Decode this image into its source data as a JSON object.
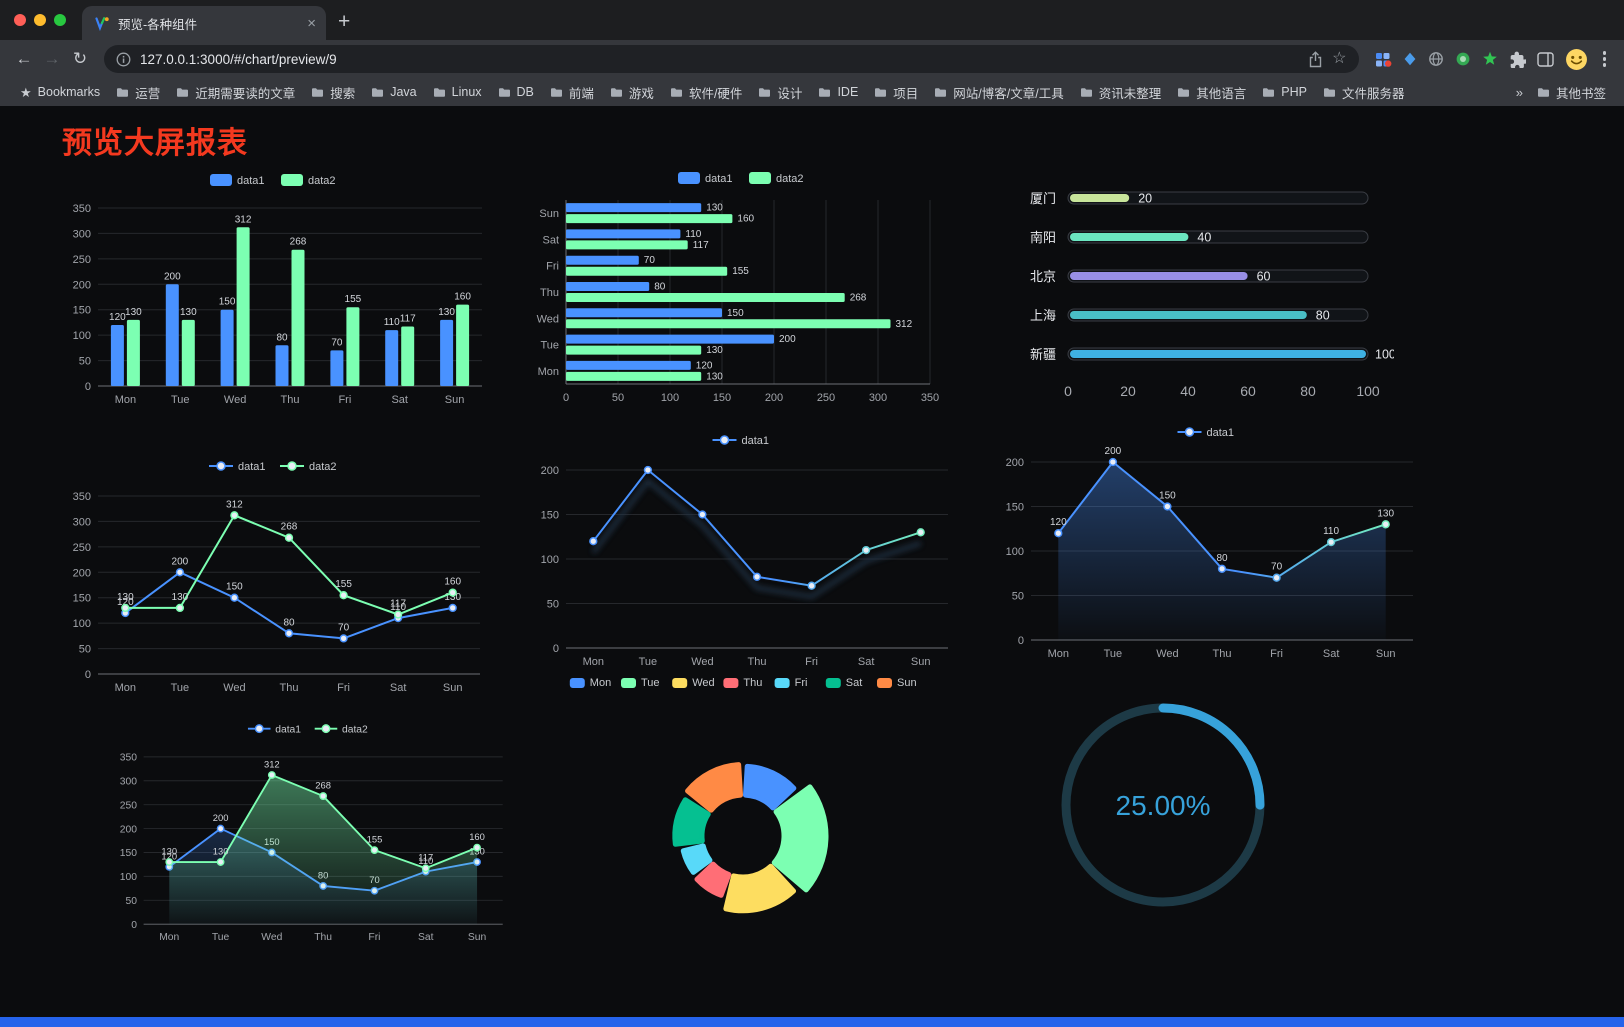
{
  "browser": {
    "tab_title": "预览-各种组件",
    "url": "127.0.0.1:3000/#/chart/preview/9",
    "bookmarks": {
      "items": [
        {
          "icon": "star",
          "label": "Bookmarks"
        },
        {
          "icon": "folder",
          "label": "运营"
        },
        {
          "icon": "folder",
          "label": "近期需要读的文章"
        },
        {
          "icon": "folder",
          "label": "搜索"
        },
        {
          "icon": "folder",
          "label": "Java"
        },
        {
          "icon": "folder",
          "label": "Linux"
        },
        {
          "icon": "folder",
          "label": "DB"
        },
        {
          "icon": "folder",
          "label": "前端"
        },
        {
          "icon": "folder",
          "label": "游戏"
        },
        {
          "icon": "folder",
          "label": "软件/硬件"
        },
        {
          "icon": "folder",
          "label": "设计"
        },
        {
          "icon": "folder",
          "label": "IDE"
        },
        {
          "icon": "folder",
          "label": "项目"
        },
        {
          "icon": "folder",
          "label": "网站/博客/文章/工具"
        },
        {
          "icon": "folder",
          "label": "资讯未整理"
        },
        {
          "icon": "folder",
          "label": "其他语言"
        },
        {
          "icon": "folder",
          "label": "PHP"
        },
        {
          "icon": "folder",
          "label": "文件服务器"
        }
      ],
      "overflow": "»",
      "other_label": "其他书签"
    }
  },
  "page": {
    "title": "预览大屏报表",
    "title_color": "#f4391f",
    "footer_color": "#2563eb"
  },
  "chart_data": [
    {
      "id": "bar1",
      "type": "bar",
      "categories": [
        "Mon",
        "Tue",
        "Wed",
        "Thu",
        "Fri",
        "Sat",
        "Sun"
      ],
      "series": [
        {
          "name": "data1",
          "color": "#4992ff",
          "values": [
            120,
            200,
            150,
            80,
            70,
            110,
            130
          ]
        },
        {
          "name": "data2",
          "color": "#7cffb2",
          "values": [
            130,
            130,
            312,
            268,
            155,
            117,
            160
          ]
        }
      ],
      "ylim": [
        0,
        350
      ],
      "ytick": 50,
      "legend_position": "top",
      "grid": true
    },
    {
      "id": "hbar",
      "type": "bar-horizontal",
      "categories": [
        "Mon",
        "Tue",
        "Wed",
        "Thu",
        "Fri",
        "Sat",
        "Sun"
      ],
      "series": [
        {
          "name": "data1",
          "color": "#4992ff",
          "values": [
            120,
            200,
            150,
            80,
            70,
            110,
            130
          ]
        },
        {
          "name": "data2",
          "color": "#7cffb2",
          "values": [
            130,
            130,
            312,
            268,
            155,
            117,
            160
          ]
        }
      ],
      "xlim": [
        0,
        350
      ],
      "xtick": 50,
      "legend_position": "top",
      "grid": true
    },
    {
      "id": "capsule",
      "type": "capsule-bar",
      "categories": [
        "厦门",
        "南阳",
        "北京",
        "上海",
        "新疆"
      ],
      "values": [
        20,
        40,
        60,
        80,
        100
      ],
      "colors": [
        "#c8e59b",
        "#6be6c1",
        "#988fe6",
        "#49bec5",
        "#3fb1e3"
      ],
      "xlim": [
        0,
        100
      ],
      "xticks": [
        0,
        20,
        40,
        60,
        80,
        100
      ]
    },
    {
      "id": "line2",
      "type": "line",
      "categories": [
        "Mon",
        "Tue",
        "Wed",
        "Thu",
        "Fri",
        "Sat",
        "Sun"
      ],
      "series": [
        {
          "name": "data1",
          "color": "#4992ff",
          "values": [
            120,
            200,
            150,
            80,
            70,
            110,
            130
          ],
          "labels": true
        },
        {
          "name": "data2",
          "color": "#7cffb2",
          "values": [
            130,
            130,
            312,
            268,
            155,
            117,
            160
          ],
          "labels": true
        }
      ],
      "ylim": [
        0,
        350
      ],
      "ytick": 50,
      "legend_position": "top",
      "grid": true
    },
    {
      "id": "gline",
      "type": "line",
      "shadow": true,
      "categories": [
        "Mon",
        "Tue",
        "Wed",
        "Thu",
        "Fri",
        "Sat",
        "Sun"
      ],
      "series": [
        {
          "name": "data1",
          "color": "#4992ff",
          "color_end": "#7cffb2",
          "gradient": true,
          "values": [
            120,
            200,
            150,
            80,
            70,
            110,
            130
          ],
          "labels": false
        }
      ],
      "ylim": [
        0,
        200
      ],
      "ytick": 50,
      "legend_position": "top",
      "grid": true
    },
    {
      "id": "aline",
      "type": "line",
      "categories": [
        "Mon",
        "Tue",
        "Wed",
        "Thu",
        "Fri",
        "Sat",
        "Sun"
      ],
      "series": [
        {
          "name": "data1",
          "color": "#4992ff",
          "color_end": "#7cffb2",
          "gradient": true,
          "area": 0.38,
          "values": [
            120,
            200,
            150,
            80,
            70,
            110,
            130
          ],
          "labels": true
        }
      ],
      "ylim": [
        0,
        200
      ],
      "ytick": 50,
      "legend_position": "top",
      "grid": true
    },
    {
      "id": "larea",
      "type": "line",
      "categories": [
        "Mon",
        "Tue",
        "Wed",
        "Thu",
        "Fri",
        "Sat",
        "Sun"
      ],
      "series": [
        {
          "name": "data1",
          "color": "#4992ff",
          "area": 0.22,
          "values": [
            120,
            200,
            150,
            80,
            70,
            110,
            130
          ],
          "labels": true
        },
        {
          "name": "data2",
          "color": "#7cffb2",
          "area": 0.45,
          "values": [
            130,
            130,
            312,
            268,
            155,
            117,
            160
          ],
          "labels": true
        }
      ],
      "ylim": [
        0,
        350
      ],
      "ytick": 50,
      "legend_position": "top",
      "grid": true
    },
    {
      "id": "pie",
      "type": "pie",
      "donut": true,
      "rose": true,
      "categories": [
        "Mon",
        "Tue",
        "Wed",
        "Thu",
        "Fri",
        "Sat",
        "Sun"
      ],
      "values": [
        120,
        200,
        150,
        80,
        70,
        110,
        130
      ],
      "colors": [
        "#4992ff",
        "#7cffb2",
        "#fddd60",
        "#ff6e76",
        "#58d9f9",
        "#05c091",
        "#ff8a45"
      ],
      "legend_position": "top"
    },
    {
      "id": "gauge",
      "type": "gauge",
      "value": 25,
      "label": "25.00%",
      "color": "#37a2da",
      "track_color": "#1d3a46"
    }
  ]
}
